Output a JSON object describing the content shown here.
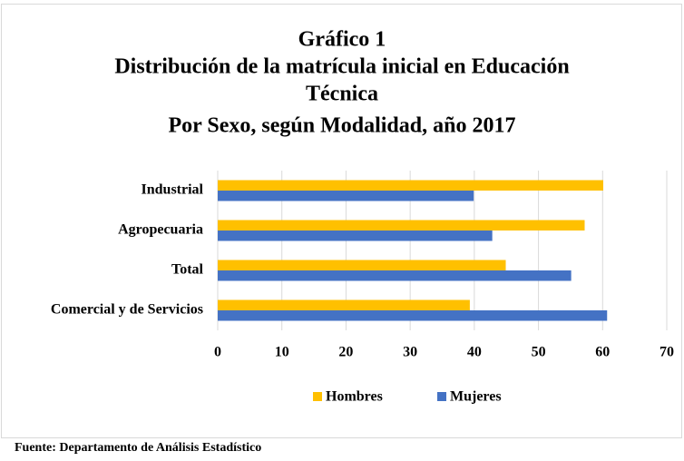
{
  "chart_data": {
    "type": "hbar",
    "title": [
      "Gráfico 1",
      "Distribución de la matrícula inicial en Educación",
      "Técnica",
      "Por Sexo,  según Modalidad, año 2017"
    ],
    "categories": [
      "Industrial",
      "Agropecuaria",
      "Total",
      "Comercial y de Servicios"
    ],
    "series": [
      {
        "name": "Hombres",
        "color": "#ffc000",
        "values": [
          60.1,
          57.2,
          44.9,
          39.3
        ]
      },
      {
        "name": "Mujeres",
        "color": "#4472c4",
        "values": [
          39.9,
          42.8,
          55.1,
          60.7
        ]
      }
    ],
    "xlim": [
      0,
      70
    ],
    "xticks": [
      0,
      10,
      20,
      30,
      40,
      50,
      60,
      70
    ],
    "grid": true,
    "legend": "bottom",
    "source": "Fuente: Departamento de Análisis Estadístico"
  }
}
